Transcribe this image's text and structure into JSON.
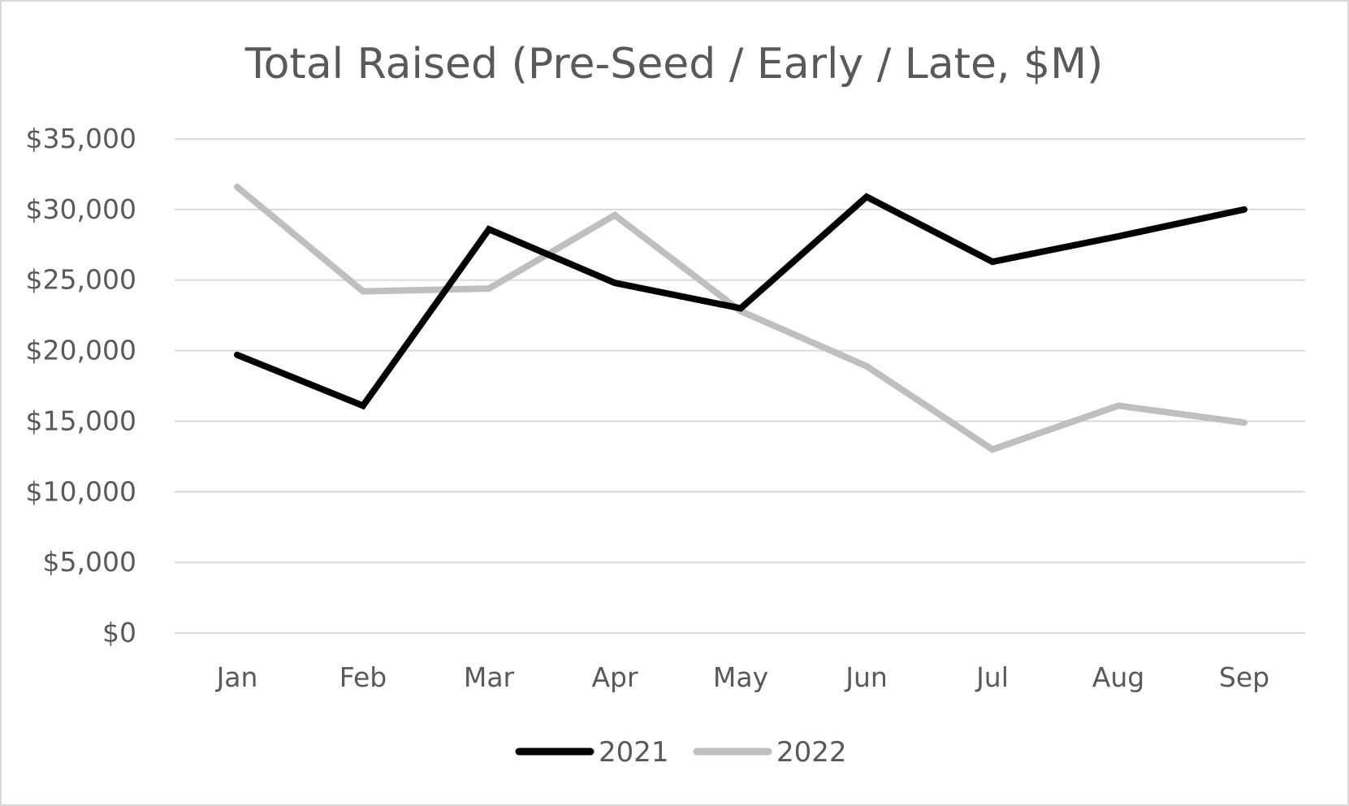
{
  "chart_data": {
    "type": "line",
    "title": "Total Raised (Pre-Seed / Early / Late, $M)",
    "xlabel": "",
    "ylabel": "",
    "categories": [
      "Jan",
      "Feb",
      "Mar",
      "Apr",
      "May",
      "Jun",
      "Jul",
      "Aug",
      "Sep"
    ],
    "series": [
      {
        "name": "2021",
        "color": "#000000",
        "values": [
          19700,
          16100,
          28600,
          24800,
          23000,
          30900,
          26300,
          28100,
          30000
        ]
      },
      {
        "name": "2022",
        "color": "#bfbfbf",
        "values": [
          31600,
          24200,
          24400,
          29600,
          22800,
          18900,
          13000,
          16100,
          14900
        ]
      }
    ],
    "ylim": [
      0,
      35000
    ],
    "yticks": [
      0,
      5000,
      10000,
      15000,
      20000,
      25000,
      30000,
      35000
    ],
    "ytick_labels": [
      "$0",
      "$5,000",
      "$10,000",
      "$15,000",
      "$20,000",
      "$25,000",
      "$30,000",
      "$35,000"
    ],
    "grid": true,
    "legend_position": "bottom"
  }
}
